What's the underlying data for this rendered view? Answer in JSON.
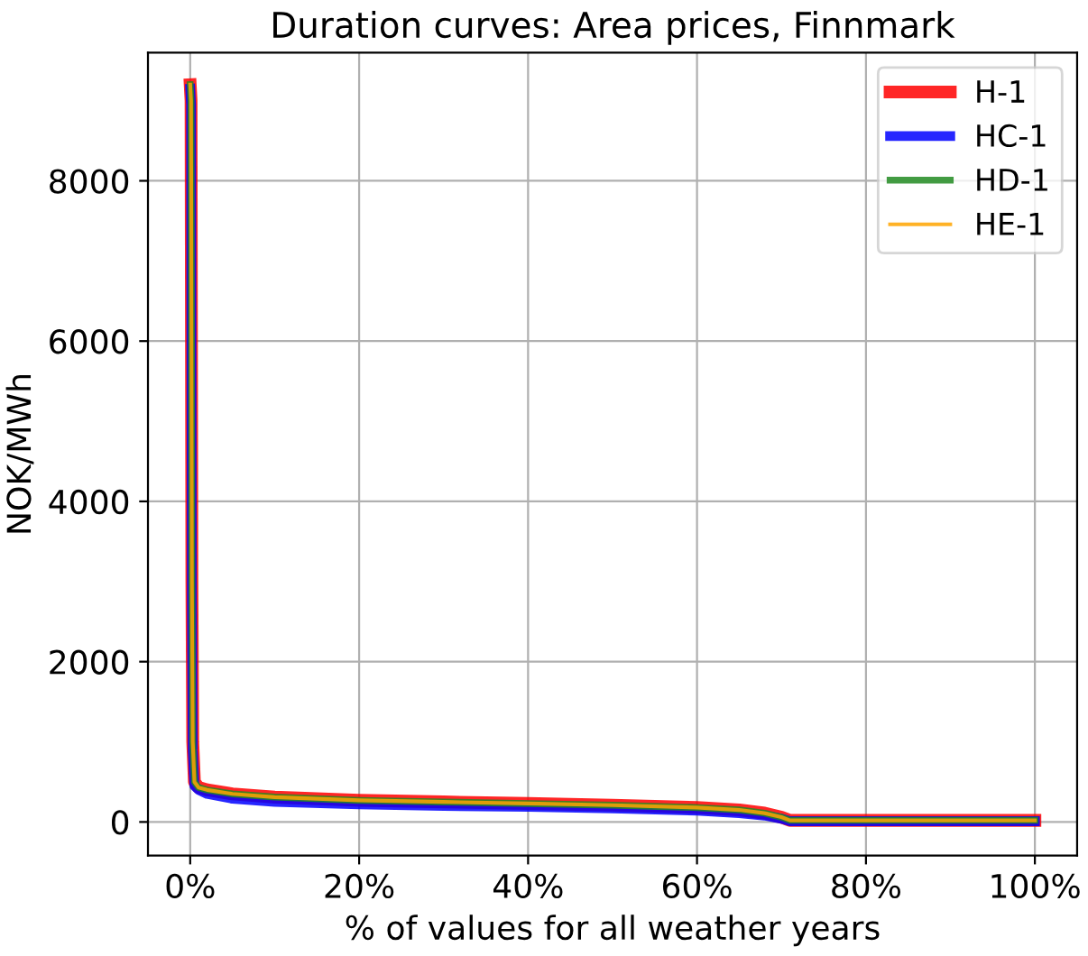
{
  "chart_data": {
    "type": "line",
    "title": "Duration curves: Area prices, Finnmark",
    "xlabel": "% of values for all weather years",
    "ylabel": "NOK/MWh",
    "xlim": [
      -5,
      105
    ],
    "ylim": [
      -420,
      9600
    ],
    "xticks": [
      {
        "value": 0,
        "label": "0%"
      },
      {
        "value": 20,
        "label": "20%"
      },
      {
        "value": 40,
        "label": "40%"
      },
      {
        "value": 60,
        "label": "60%"
      },
      {
        "value": 80,
        "label": "80%"
      },
      {
        "value": 100,
        "label": "100%"
      }
    ],
    "yticks": [
      0,
      2000,
      4000,
      6000,
      8000
    ],
    "grid": true,
    "legend": "top right",
    "line_style": "solid",
    "marker": "none",
    "x": [
      0,
      0.1,
      0.2,
      0.3,
      0.5,
      1,
      2,
      5,
      10,
      20,
      30,
      40,
      50,
      60,
      65,
      68,
      70,
      71,
      80,
      90,
      100
    ],
    "series": [
      {
        "name": "H-1",
        "color": "#ff0000",
        "values": [
          9200,
          9000,
          3000,
          1000,
          500,
          430,
          400,
          350,
          310,
          270,
          250,
          230,
          210,
          180,
          150,
          110,
          60,
          20,
          20,
          20,
          20
        ]
      },
      {
        "name": "HC-1",
        "color": "#0000ff",
        "values": [
          9150,
          8950,
          2800,
          900,
          450,
          400,
          350,
          290,
          250,
          220,
          200,
          190,
          170,
          140,
          110,
          80,
          40,
          10,
          10,
          10,
          10
        ]
      },
      {
        "name": "HD-1",
        "color": "#228b22",
        "values": [
          9200,
          9000,
          3000,
          1000,
          500,
          430,
          400,
          350,
          310,
          270,
          250,
          230,
          210,
          180,
          150,
          110,
          60,
          20,
          20,
          20,
          20
        ]
      },
      {
        "name": "HE-1",
        "color": "#ffa500",
        "values": [
          9200,
          9000,
          3000,
          1000,
          500,
          430,
          400,
          350,
          310,
          270,
          250,
          230,
          210,
          180,
          150,
          110,
          60,
          20,
          20,
          20,
          20
        ]
      }
    ]
  }
}
